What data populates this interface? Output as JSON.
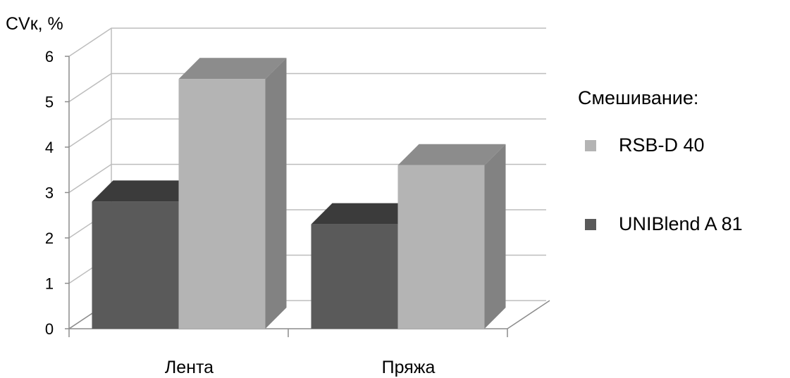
{
  "chart_data": {
    "type": "bar",
    "ylabel": "CVк, %",
    "categories": [
      "Лента",
      "Пряжа"
    ],
    "yticks": [
      0,
      1,
      2,
      3,
      4,
      5,
      6
    ],
    "ylim": [
      0,
      6
    ],
    "series": [
      {
        "name": "UNIBlend A 81",
        "values": [
          2.8,
          2.3
        ],
        "color": "#5a5a5a"
      },
      {
        "name": "RSB-D 40",
        "values": [
          5.5,
          3.6
        ],
        "color": "#b4b4b4"
      }
    ],
    "legend": {
      "title": "Смешивание:",
      "order": [
        "RSB-D 40",
        "UNIBlend A 81"
      ],
      "position": "right"
    },
    "style": "3d-clustered-column",
    "grid": true
  }
}
